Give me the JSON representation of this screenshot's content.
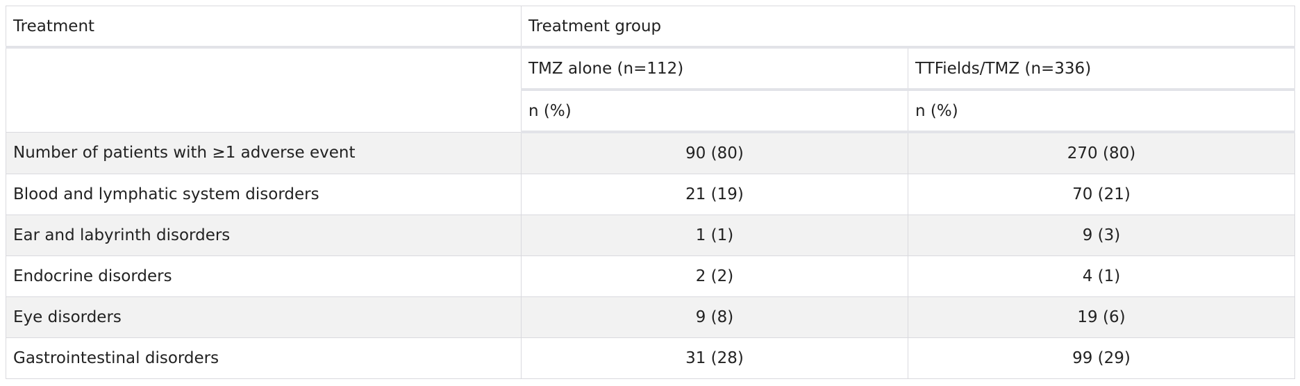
{
  "header": {
    "row1": {
      "col1": "Treatment",
      "col2": "Treatment group"
    },
    "row2": {
      "col2": "TMZ alone (n=112)",
      "col3": "TTFields/TMZ (n=336)"
    },
    "row3": {
      "col2": "n (%)",
      "col3": "n (%)"
    }
  },
  "rows": [
    {
      "label": "Number of patients with ≥1 adverse event",
      "tmz": "90 (80)",
      "ttf": "270 (80)"
    },
    {
      "label": "Blood and lymphatic system disorders",
      "tmz": "21 (19)",
      "ttf": "70 (21)"
    },
    {
      "label": "Ear and labyrinth disorders",
      "tmz": "1 (1)",
      "ttf": "9 (3)"
    },
    {
      "label": "Endocrine disorders",
      "tmz": "2 (2)",
      "ttf": "4 (1)"
    },
    {
      "label": "Eye disorders",
      "tmz": "9 (8)",
      "ttf": "19 (6)"
    },
    {
      "label": "Gastrointestinal disorders",
      "tmz": "31 (28)",
      "ttf": "99 (29)"
    }
  ]
}
